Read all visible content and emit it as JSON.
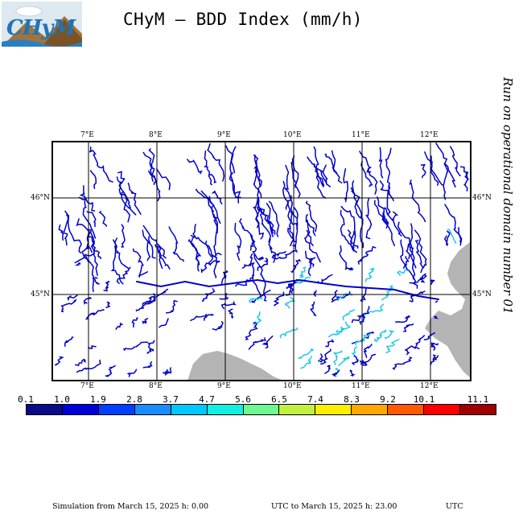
{
  "title": "CHyM – BDD Index (mm/h)",
  "logo": {
    "text": "CHyM"
  },
  "side_note": "Run on operational domain number 01",
  "axes": {
    "lon_top": [
      "7°E",
      "8°E",
      "9°E",
      "10°E",
      "11°E",
      "12°E"
    ],
    "lon_bottom": [
      "7°E",
      "8°E",
      "9°E",
      "10°E",
      "11°E",
      "12°E"
    ],
    "lat_left": [
      "46°N",
      "45°N"
    ],
    "lat_right": [
      "46°N",
      "45°N"
    ],
    "lon_range": [
      6.5,
      12.5
    ],
    "lat_range": [
      44.1,
      46.6
    ]
  },
  "legend": {
    "labels": [
      "0.1",
      "1.0",
      "1.9",
      "2.8",
      "3.7",
      "4.7",
      "5.6",
      "6.5",
      "7.4",
      "8.3",
      "9.2",
      "10.1",
      "11.1"
    ],
    "colors": [
      "#0a0a8a",
      "#0000d8",
      "#0040ff",
      "#1a8cff",
      "#00c8ff",
      "#10f0e0",
      "#70f890",
      "#c0f040",
      "#ffee00",
      "#ffa800",
      "#ff5a00",
      "#ff0000",
      "#a00000"
    ]
  },
  "footer": {
    "from": "Simulation from March 15, 2025 h: 0.00",
    "to": "UTC to March 15, 2025 h: 23.00",
    "tz": "UTC"
  },
  "colors": {
    "river_main": "#0000cc",
    "river_cyan": "#20c8e8",
    "sea": "#b4b4b4"
  }
}
